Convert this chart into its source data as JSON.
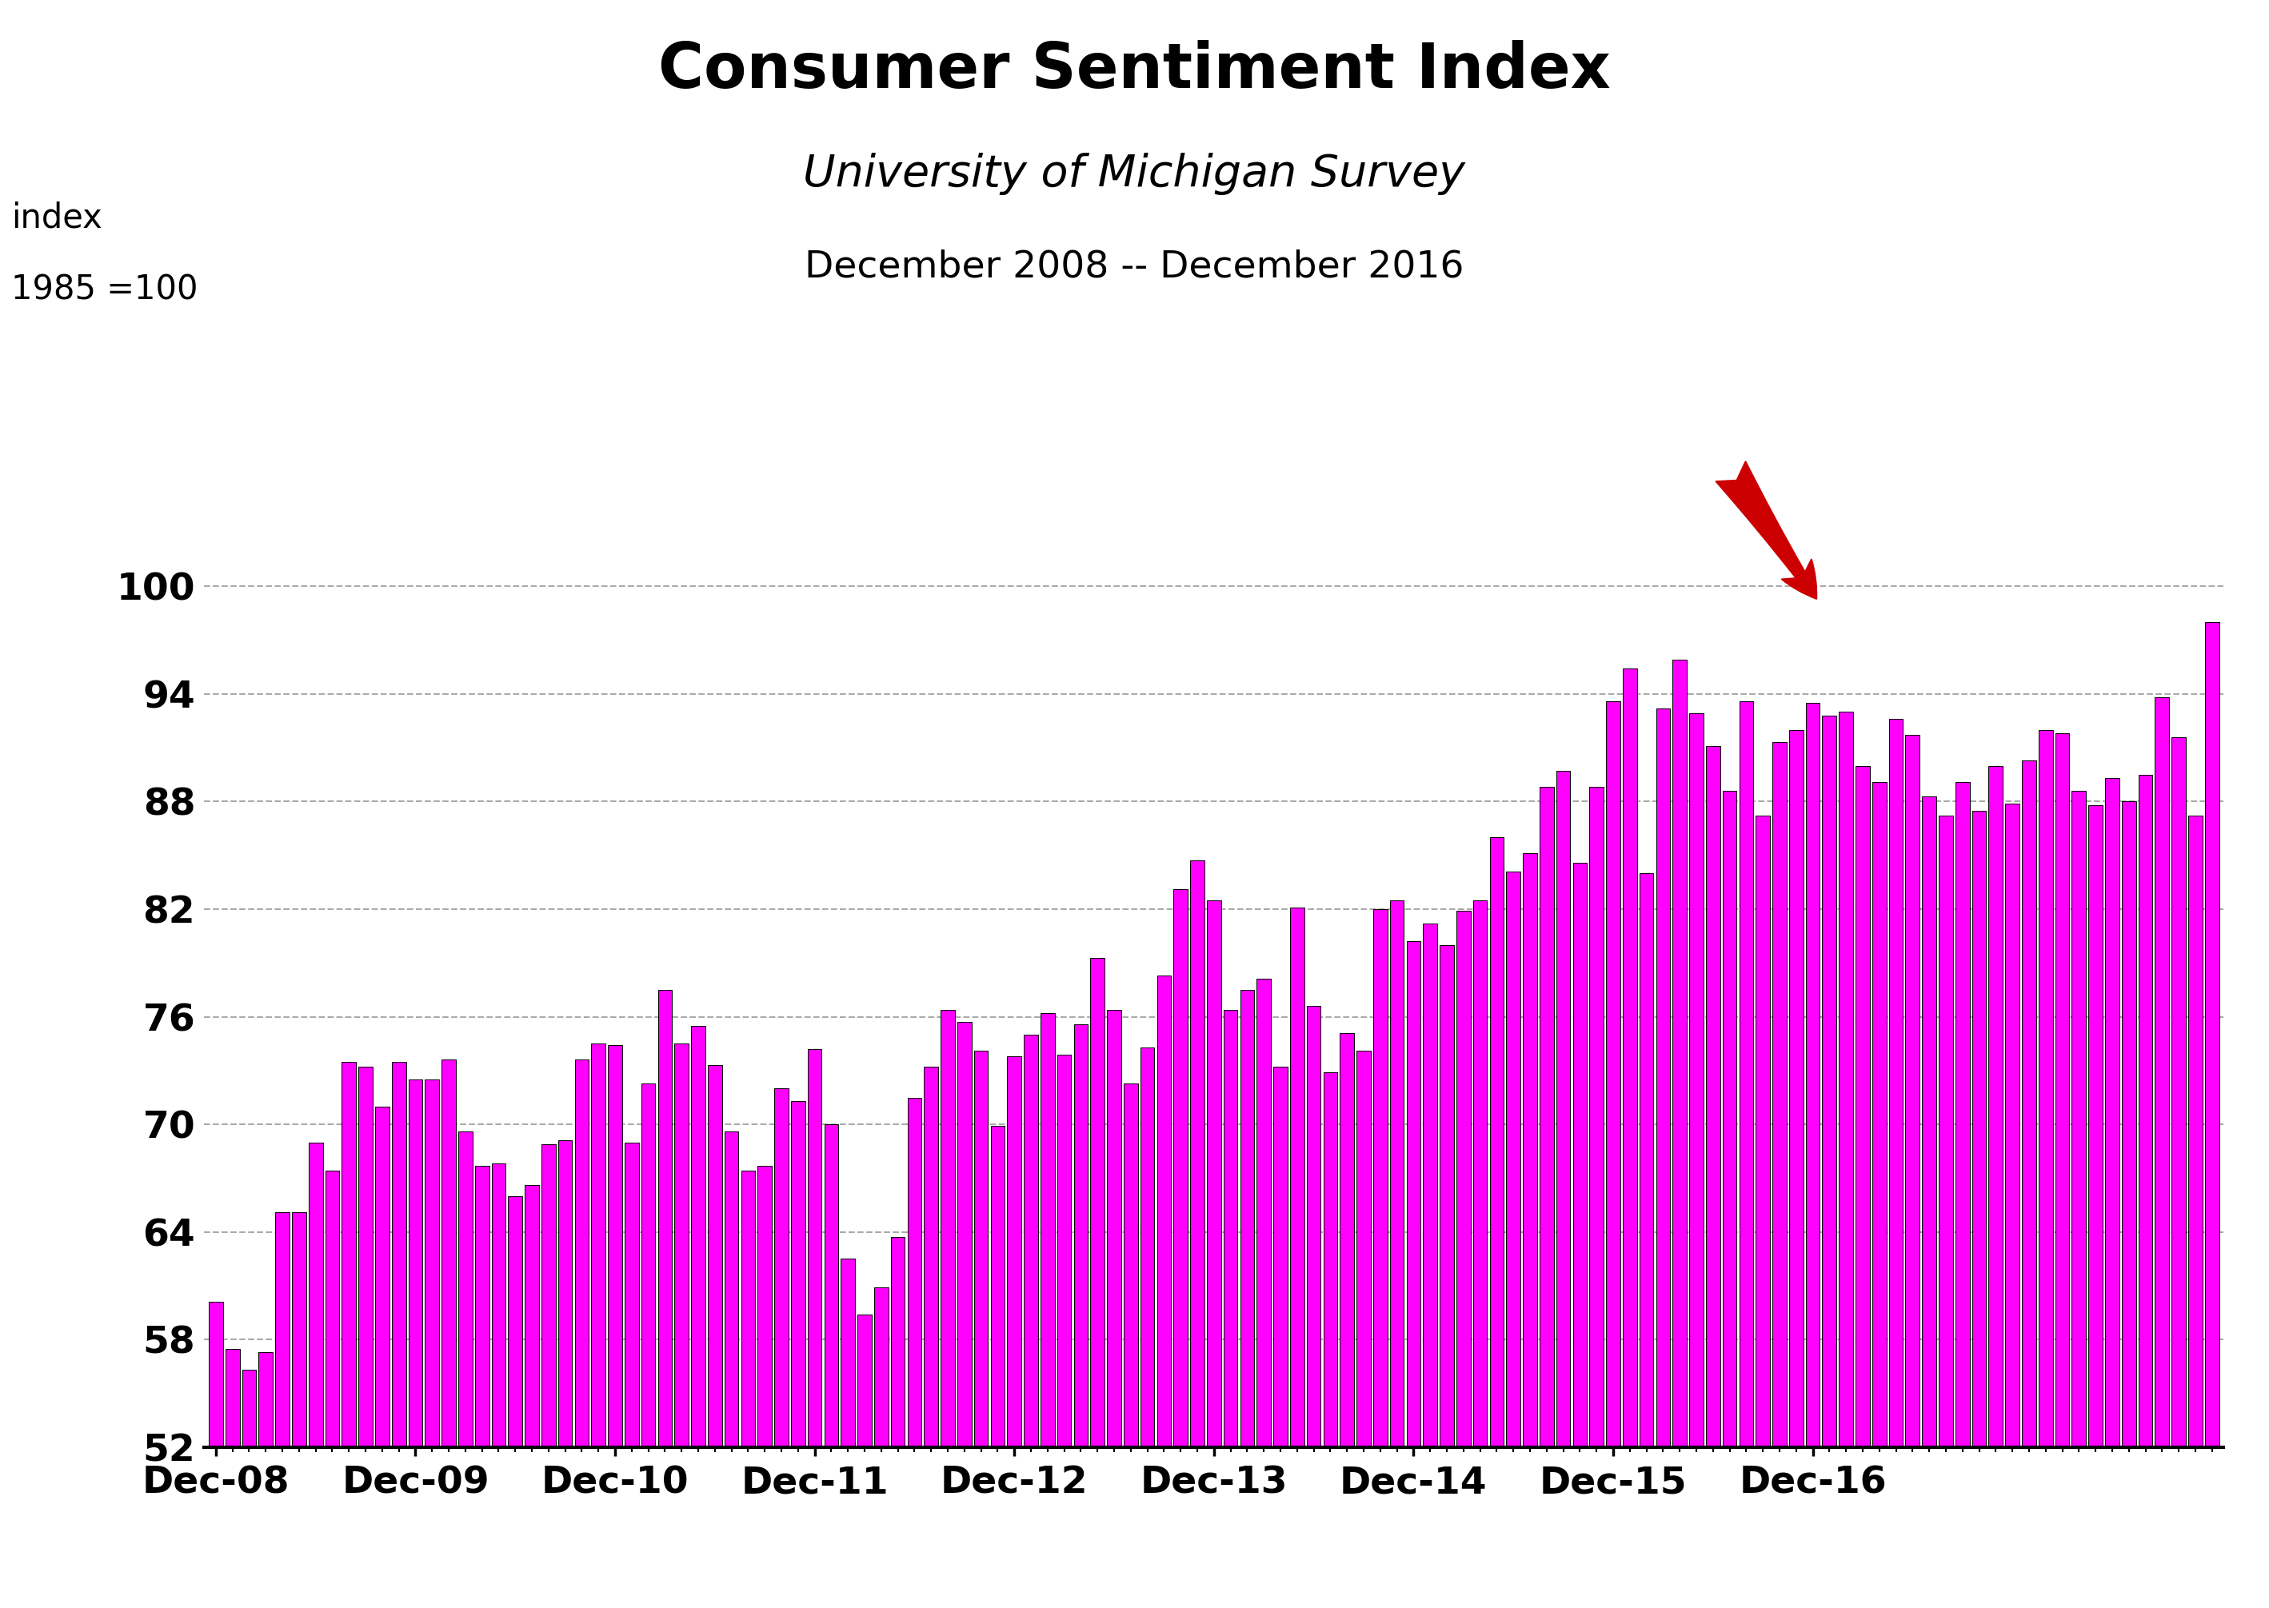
{
  "title": "Consumer Sentiment Index",
  "subtitle": "University of Michigan Survey",
  "date_range": "December 2008 -- December 2016",
  "ylabel_line1": "index",
  "ylabel_line2": "1985 =100",
  "bar_color": "#FF00FF",
  "bar_edge_color": "#000000",
  "background_color": "#FFFFFF",
  "yticks": [
    52,
    58,
    64,
    70,
    76,
    82,
    88,
    94,
    100
  ],
  "ylim": [
    52,
    104
  ],
  "xtick_labels": [
    "Dec-08",
    "Dec-09",
    "Dec-10",
    "Dec-11",
    "Dec-12",
    "Dec-13",
    "Dec-14",
    "Dec-15",
    "Dec-16"
  ],
  "values": [
    60.1,
    57.5,
    56.3,
    57.3,
    65.1,
    65.1,
    69.0,
    67.4,
    73.5,
    73.2,
    71.0,
    73.5,
    72.5,
    72.5,
    73.6,
    69.6,
    67.7,
    67.8,
    66.0,
    66.6,
    68.9,
    69.1,
    73.6,
    74.5,
    74.4,
    69.0,
    72.3,
    77.5,
    74.5,
    75.5,
    73.3,
    69.6,
    67.4,
    67.7,
    72.0,
    71.3,
    74.2,
    70.0,
    62.5,
    59.4,
    60.9,
    63.7,
    71.5,
    73.2,
    76.4,
    75.7,
    74.1,
    69.9,
    73.8,
    75.0,
    76.2,
    73.9,
    75.6,
    79.3,
    76.4,
    72.3,
    74.3,
    78.3,
    83.1,
    84.7,
    82.5,
    76.4,
    77.5,
    78.1,
    73.2,
    82.1,
    76.6,
    72.9,
    75.1,
    74.1,
    82.0,
    82.5,
    80.2,
    81.2,
    80.0,
    81.9,
    82.5,
    86.0,
    84.1,
    85.1,
    88.8,
    89.7,
    84.6,
    88.8,
    93.6,
    95.4,
    84.0,
    93.2,
    95.9,
    92.9,
    91.1,
    88.6,
    93.6,
    87.2,
    91.3,
    92.0,
    93.5,
    92.8,
    93.0,
    90.0,
    89.1,
    92.6,
    91.7,
    88.3,
    87.2,
    89.1,
    87.5,
    90.0,
    87.9,
    90.3,
    92.0,
    91.8,
    88.6,
    87.8,
    89.3,
    88.0,
    89.5,
    93.8,
    91.6,
    87.2,
    98.0
  ],
  "arrow_color": "#CC0000",
  "grid_color": "#AAAAAA",
  "grid_style": "--",
  "title_fontsize": 56,
  "subtitle_fontsize": 40,
  "date_range_fontsize": 34,
  "axis_label_fontsize": 30,
  "tick_fontsize": 34,
  "xtick_fontsize": 34
}
